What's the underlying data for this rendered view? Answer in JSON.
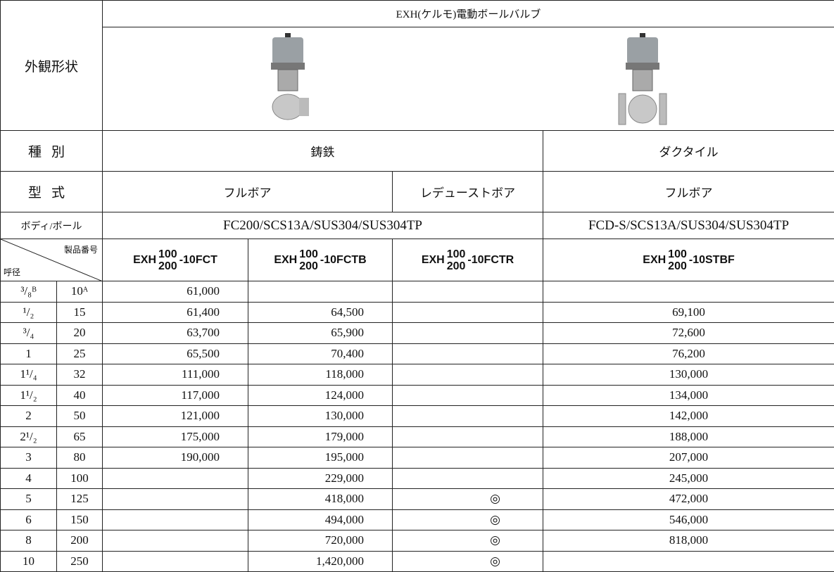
{
  "header": {
    "series_title": "EXH(ケルモ)電動ボールバルブ",
    "appearance_label": "外観形状",
    "type_label": "種別",
    "type_cast": "鋳鉄",
    "type_ductile": "ダクタイル",
    "form_label": "型式",
    "form_full_1": "フルボア",
    "form_reduced": "レデューストボア",
    "form_full_2": "フルボア",
    "material_label": "ボディ/ボール",
    "material_cast": "FC200/SCS13A/SUS304/SUS304TP",
    "material_ductile": "FCD-S/SCS13A/SUS304/SUS304TP",
    "product_label": "製品番号",
    "size_label": "呼径"
  },
  "products": [
    {
      "prefix": "EXH",
      "top": "100",
      "bottom": "200",
      "suffix": "-10FCT"
    },
    {
      "prefix": "EXH",
      "top": "100",
      "bottom": "200",
      "suffix": "-10FCTB"
    },
    {
      "prefix": "EXH",
      "top": "100",
      "bottom": "200",
      "suffix": "-10FCTR"
    },
    {
      "prefix": "EXH",
      "top": "100",
      "bottom": "200",
      "suffix": "-10STBF"
    }
  ],
  "rows": [
    [
      "³/₈ᴮ",
      "10ᴬ",
      "61,000",
      null,
      null,
      null
    ],
    [
      "¹/₂",
      "15",
      "61,400",
      "64,500",
      null,
      "69,100"
    ],
    [
      "³/₄",
      "20",
      "63,700",
      "65,900",
      null,
      "72,600"
    ],
    [
      "1",
      "25",
      "65,500",
      "70,400",
      null,
      "76,200"
    ],
    [
      "1¹/₄",
      "32",
      "111,000",
      "118,000",
      null,
      "130,000"
    ],
    [
      "1¹/₂",
      "40",
      "117,000",
      "124,000",
      null,
      "134,000"
    ],
    [
      "2",
      "50",
      "121,000",
      "130,000",
      null,
      "142,000"
    ],
    [
      "2¹/₂",
      "65",
      "175,000",
      "179,000",
      null,
      "188,000"
    ],
    [
      "3",
      "80",
      "190,000",
      "195,000",
      null,
      "207,000"
    ],
    [
      "4",
      "100",
      null,
      "229,000",
      null,
      "245,000"
    ],
    [
      "5",
      "125",
      null,
      "418,000",
      "◎",
      "472,000"
    ],
    [
      "6",
      "150",
      null,
      "494,000",
      "◎",
      "546,000"
    ],
    [
      "8",
      "200",
      null,
      "720,000",
      "◎",
      "818,000"
    ],
    [
      "10",
      "250",
      null,
      "1,420,000",
      "◎",
      null
    ]
  ]
}
